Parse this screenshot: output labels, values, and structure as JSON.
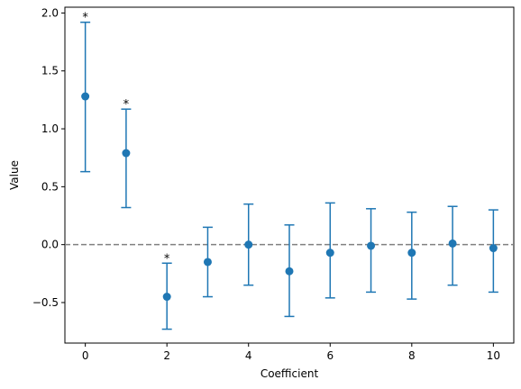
{
  "chart_data": {
    "type": "scatter",
    "subtype": "errorbar",
    "xlabel": "Coefficient",
    "ylabel": "Value",
    "xlim": [
      -0.5,
      10.5
    ],
    "ylim": [
      -0.85,
      2.05
    ],
    "xticks": [
      0,
      2,
      4,
      6,
      8,
      10
    ],
    "yticks": [
      -0.5,
      0.0,
      0.5,
      1.0,
      1.5,
      2.0
    ],
    "ytick_labels": [
      "−0.5",
      "0.0",
      "0.5",
      "1.0",
      "1.5",
      "2.0"
    ],
    "reference_line": {
      "y": 0.0,
      "style": "dashed",
      "color": "#808080"
    },
    "grid": false,
    "color": "#1f77b4",
    "points": [
      {
        "x": 0,
        "y": 1.28,
        "lower": 0.63,
        "upper": 1.92,
        "star": "*"
      },
      {
        "x": 1,
        "y": 0.79,
        "lower": 0.32,
        "upper": 1.17,
        "star": "*"
      },
      {
        "x": 2,
        "y": -0.45,
        "lower": -0.73,
        "upper": -0.16,
        "star": "*"
      },
      {
        "x": 3,
        "y": -0.15,
        "lower": -0.45,
        "upper": 0.15
      },
      {
        "x": 4,
        "y": 0.0,
        "lower": -0.35,
        "upper": 0.35
      },
      {
        "x": 5,
        "y": -0.23,
        "lower": -0.62,
        "upper": 0.17
      },
      {
        "x": 6,
        "y": -0.07,
        "lower": -0.46,
        "upper": 0.36
      },
      {
        "x": 7,
        "y": -0.01,
        "lower": -0.41,
        "upper": 0.31
      },
      {
        "x": 8,
        "y": -0.07,
        "lower": -0.47,
        "upper": 0.28
      },
      {
        "x": 9,
        "y": 0.01,
        "lower": -0.35,
        "upper": 0.33
      },
      {
        "x": 10,
        "y": -0.03,
        "lower": -0.41,
        "upper": 0.3
      }
    ]
  }
}
